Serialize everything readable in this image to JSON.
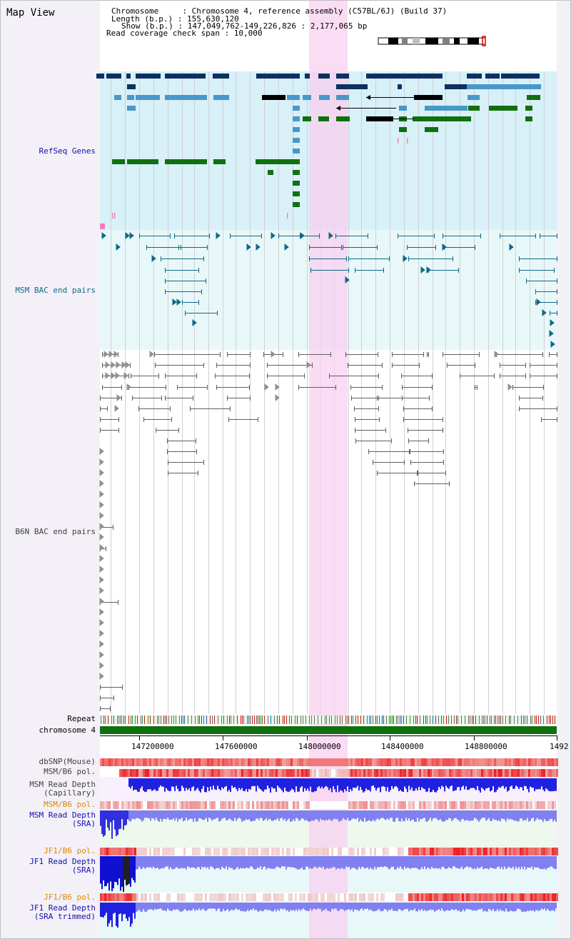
{
  "map_title": "Map View",
  "header": {
    "chromosome_line": "Chromosome     : Chromosome 4, reference assembly (C57BL/6J) (Build 37)",
    "length_line": "Length (b.p.) : 155,630,120",
    "show_line": "Show (b.p.) : 147,049,762-149,226,826 : 2,177,065 bp",
    "coverage_line": "Read coverage check span : 10,000"
  },
  "tracks": {
    "refseq": "RefSeq Genes",
    "msm_bac": "MSM BAC end pairs",
    "b6n_bac": "B6N BAC end pairs",
    "repeat": "Repeat",
    "chromosome": "chromosome 4",
    "dbsnp": "dbSNP(Mouse)",
    "msm_b6_pol_1": "MSM/B6 pol.",
    "msm_depth_cap_1": "MSM Read Depth",
    "msm_depth_cap_2": "(Capillary)",
    "msm_b6_pol_2": "MSM/B6 pol.",
    "msm_depth_sra_1": "MSM Read Depth",
    "msm_depth_sra_2": "(SRA)",
    "jf1_pol_1": "JF1/B6 pol.",
    "jf1_depth_sra_1": "JF1 Read Depth",
    "jf1_depth_sra_2": "(SRA)",
    "jf1_pol_2": "JF1/B6 pol.",
    "jf1_depth_trim_1": "JF1 Read Depth",
    "jf1_depth_trim_2": "(SRA trimmed)"
  },
  "axis": {
    "ticks": [
      "147200000",
      "147600000",
      "148000000",
      "148400000",
      "148800000",
      "1492"
    ]
  },
  "colors": {
    "refseq_bg": "#d8f0f8",
    "msm_bg": "#e8f8f8",
    "highlight": "#f8d8f0",
    "navy": "#0c3060",
    "steel": "#4898c8",
    "green": "#107010",
    "teal": "#106888",
    "gray": "#606060",
    "label_blue": "#1010b0",
    "label_orange": "#e08800",
    "label_teal": "#106888",
    "label_gray": "#404040"
  }
}
